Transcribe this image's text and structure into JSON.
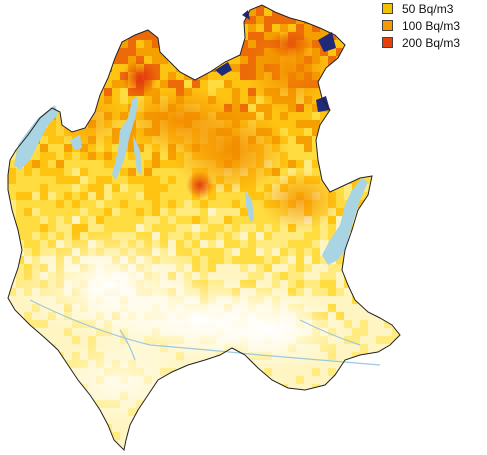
{
  "legend": {
    "items": [
      {
        "label": "50 Bq/m3",
        "color": "#f2c200"
      },
      {
        "label": "100 Bq/m3",
        "color": "#f59a00"
      },
      {
        "label": "200 Bq/m3",
        "color": "#e8400a"
      }
    ]
  },
  "colors": {
    "low": "#fffbe6",
    "mid": "#ffd21a",
    "high": "#f5a000",
    "peak": "#e23a10",
    "extreme": "#1f2a78",
    "water": "#a8d4e3",
    "border": "#222222"
  }
}
